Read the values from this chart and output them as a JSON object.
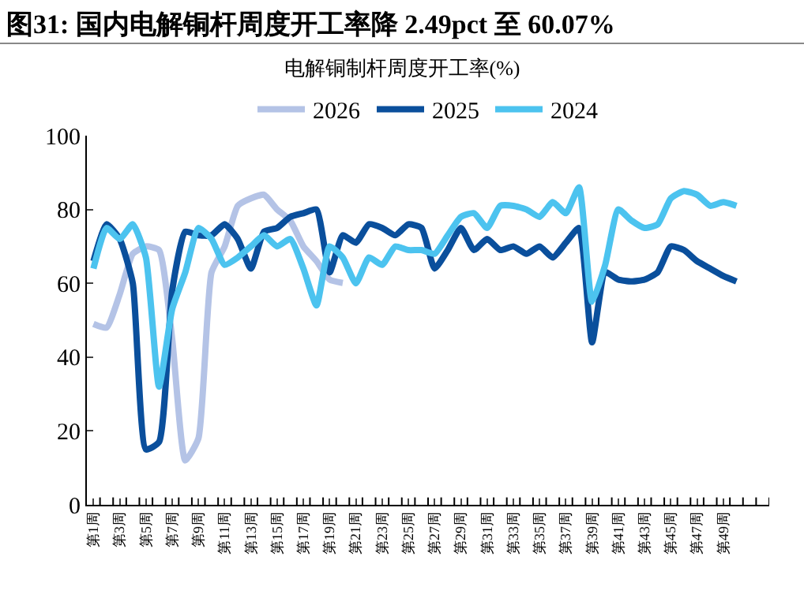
{
  "chart_data": {
    "type": "line",
    "title": "图31:  国内电解铜杆周度开工率降 2.49pct 至 60.07%",
    "subtitle": "电解铜制杆周度开工率(%)",
    "categories": [
      "第1周",
      null,
      "第3周",
      null,
      "第5周",
      null,
      "第7周",
      null,
      "第9周",
      null,
      "第11周",
      null,
      "第13周",
      null,
      "第15周",
      null,
      "第17周",
      null,
      "第19周",
      null,
      "第21周",
      null,
      "第23周",
      null,
      "第25周",
      null,
      "第27周",
      null,
      "第29周",
      null,
      "第31周",
      null,
      "第33周",
      null,
      "第35周",
      null,
      "第37周",
      null,
      "第39周",
      null,
      "第41周",
      null,
      "第43周",
      null,
      "第45周",
      null,
      "第47周",
      null,
      "第49周",
      null,
      null,
      null
    ],
    "series": [
      {
        "name": "2026",
        "color": "#b4c3e6",
        "values": [
          49,
          48,
          57,
          68,
          70,
          69,
          45,
          12,
          18,
          63,
          70,
          81,
          83,
          84,
          80,
          77,
          70,
          66,
          61,
          60.1,
          null,
          null,
          null,
          null,
          null,
          null,
          null,
          null,
          null,
          null,
          null,
          null,
          null,
          null,
          null,
          null,
          null,
          null,
          null,
          null,
          null,
          null,
          null,
          null,
          null,
          null,
          null,
          null,
          null,
          null,
          null,
          null
        ]
      },
      {
        "name": "2025",
        "color": "#0a4f9c",
        "values": [
          66,
          76,
          72,
          60,
          15,
          17,
          58,
          74,
          73,
          73,
          76,
          72,
          64,
          74,
          75,
          78,
          79,
          80,
          63,
          73,
          71,
          76,
          75,
          73,
          76,
          75,
          64,
          69,
          75,
          69,
          72,
          69,
          70,
          68,
          70,
          67,
          71,
          75,
          44,
          63,
          61,
          60.5,
          61,
          63,
          70,
          69,
          66,
          64,
          62,
          60.5,
          null,
          null
        ]
      },
      {
        "name": "2024",
        "color": "#4cc3ef",
        "values": [
          64,
          75,
          72,
          76,
          67,
          32,
          53,
          63,
          75,
          72,
          65,
          67,
          70,
          73,
          70,
          72,
          64,
          54,
          70,
          67,
          60,
          67,
          65,
          70,
          69,
          69,
          68,
          73,
          78,
          79,
          75,
          81,
          81,
          80,
          78,
          82,
          79,
          86,
          55,
          65,
          80,
          77,
          75,
          76,
          83,
          85,
          84,
          81,
          82,
          81,
          null,
          null
        ]
      }
    ],
    "ylim": [
      0,
      100
    ],
    "yticks": [
      0,
      20,
      40,
      60,
      80,
      100
    ],
    "grid": false,
    "legend": "top"
  }
}
